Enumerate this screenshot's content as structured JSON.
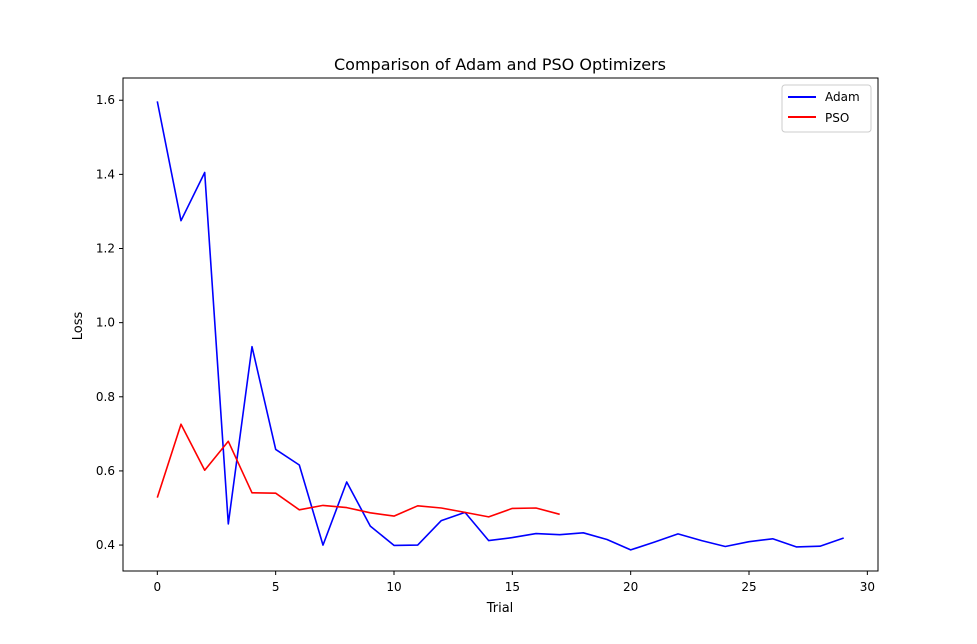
{
  "chart_data": {
    "type": "line",
    "title": "Comparison of Adam and PSO Optimizers",
    "xlabel": "Trial",
    "ylabel": "Loss",
    "xlim": [
      -1.45,
      30.45
    ],
    "ylim": [
      0.33,
      1.66
    ],
    "xticks": [
      0,
      5,
      10,
      15,
      20,
      25,
      30
    ],
    "yticks": [
      0.4,
      0.6,
      0.8,
      1.0,
      1.2,
      1.4,
      1.6
    ],
    "grid": false,
    "legend_position": "top-right",
    "series": [
      {
        "name": "Adam",
        "color": "#0000ff",
        "x": [
          0,
          1,
          2,
          3,
          4,
          5,
          6,
          7,
          8,
          9,
          10,
          11,
          12,
          13,
          14,
          15,
          16,
          17,
          18,
          19,
          20,
          21,
          22,
          23,
          24,
          25,
          26,
          27,
          28,
          29
        ],
        "values": [
          1.597,
          1.275,
          1.405,
          0.457,
          0.935,
          0.658,
          0.616,
          0.4,
          0.57,
          0.451,
          0.399,
          0.4,
          0.466,
          0.488,
          0.412,
          0.42,
          0.431,
          0.428,
          0.433,
          0.415,
          0.387,
          0.408,
          0.43,
          0.412,
          0.396,
          0.409,
          0.417,
          0.395,
          0.397,
          0.419
        ]
      },
      {
        "name": "PSO",
        "color": "#ff0000",
        "x": [
          0,
          1,
          2,
          3,
          4,
          5,
          6,
          7,
          8,
          9,
          10,
          11,
          12,
          13,
          14,
          15,
          16,
          17
        ],
        "values": [
          0.528,
          0.726,
          0.602,
          0.68,
          0.541,
          0.54,
          0.495,
          0.507,
          0.501,
          0.487,
          0.478,
          0.506,
          0.5,
          0.488,
          0.476,
          0.499,
          0.5,
          0.483
        ]
      }
    ]
  }
}
